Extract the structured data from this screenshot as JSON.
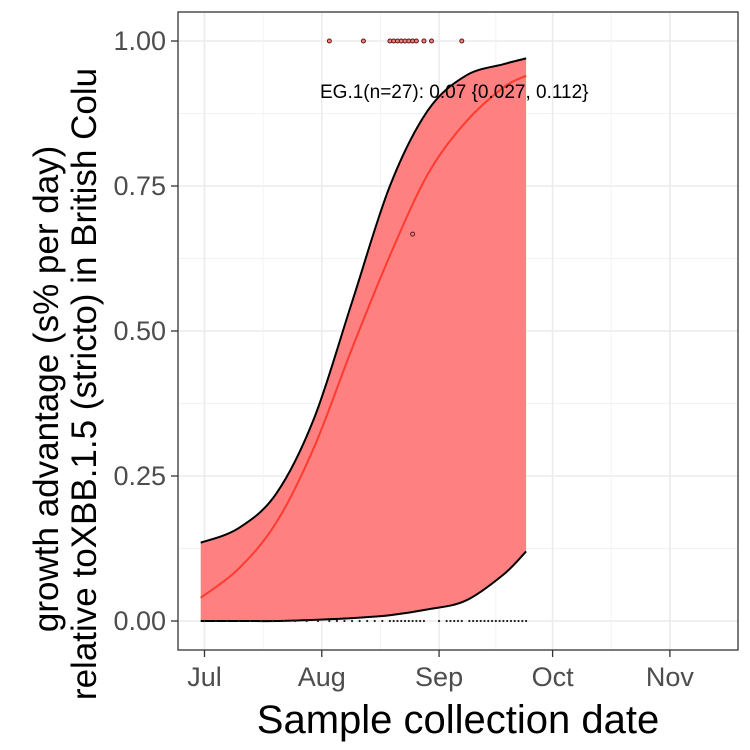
{
  "chart_data": {
    "type": "line",
    "xlabel": "Sample collection date",
    "ylabel": "growth advantage (s% per day)\nrelative toXBB.1.5 (stricto) in British Colu",
    "x_ticks": [
      "Jul",
      "Aug",
      "Sep",
      "Oct",
      "Nov"
    ],
    "x_tick_dates": [
      "2023-07-01",
      "2023-08-01",
      "2023-09-01",
      "2023-10-01",
      "2023-11-01"
    ],
    "xlim": [
      "2023-06-24",
      "2023-11-19"
    ],
    "y_ticks": [
      "0.00",
      "0.25",
      "0.50",
      "0.75",
      "1.00"
    ],
    "y_tick_values": [
      0,
      0.25,
      0.5,
      0.75,
      1.0
    ],
    "ylim": [
      -0.05,
      1.05
    ],
    "grid": true,
    "annotation": "EG.1(n=27): 0.07 {0.027, 0.112}",
    "series": [
      {
        "name": "EG.1",
        "color": "#ff3b30",
        "fill_color": "#ff8080",
        "fit_dates": [
          "2023-06-30",
          "2023-07-10",
          "2023-07-20",
          "2023-07-30",
          "2023-08-09",
          "2023-08-19",
          "2023-08-29",
          "2023-09-08",
          "2023-09-18",
          "2023-09-24"
        ],
        "fit": [
          0.04,
          0.09,
          0.17,
          0.3,
          0.47,
          0.63,
          0.77,
          0.86,
          0.92,
          0.94
        ],
        "lower": [
          0.0,
          0.0,
          0.0,
          0.002,
          0.005,
          0.01,
          0.02,
          0.035,
          0.08,
          0.12
        ],
        "upper": [
          0.135,
          0.16,
          0.22,
          0.35,
          0.55,
          0.75,
          0.88,
          0.94,
          0.96,
          0.97
        ],
        "points": [
          {
            "date": "2023-08-03",
            "value": 1.0
          },
          {
            "date": "2023-08-12",
            "value": 1.0
          },
          {
            "date": "2023-08-19",
            "value": 1.0
          },
          {
            "date": "2023-08-20",
            "value": 1.0
          },
          {
            "date": "2023-08-21",
            "value": 1.0
          },
          {
            "date": "2023-08-22",
            "value": 1.0
          },
          {
            "date": "2023-08-23",
            "value": 1.0
          },
          {
            "date": "2023-08-24",
            "value": 1.0
          },
          {
            "date": "2023-08-25",
            "value": 1.0
          },
          {
            "date": "2023-08-26",
            "value": 1.0
          },
          {
            "date": "2023-08-28",
            "value": 1.0
          },
          {
            "date": "2023-08-30",
            "value": 1.0
          },
          {
            "date": "2023-09-07",
            "value": 1.0
          },
          {
            "date": "2023-08-25",
            "value": 0.667
          }
        ],
        "zero_points": [
          "2023-07-01",
          "2023-07-04",
          "2023-07-07",
          "2023-07-10",
          "2023-07-13",
          "2023-07-16",
          "2023-07-19",
          "2023-07-22",
          "2023-07-25",
          "2023-07-28",
          "2023-07-31",
          "2023-08-03",
          "2023-08-05",
          "2023-08-07",
          "2023-08-09",
          "2023-08-11",
          "2023-08-13",
          "2023-08-15",
          "2023-08-17",
          "2023-08-19",
          "2023-08-20",
          "2023-08-21",
          "2023-08-22",
          "2023-08-23",
          "2023-08-24",
          "2023-08-25",
          "2023-08-26",
          "2023-08-27",
          "2023-08-28",
          "2023-09-01",
          "2023-09-03",
          "2023-09-04",
          "2023-09-05",
          "2023-09-06",
          "2023-09-07",
          "2023-09-09",
          "2023-09-10",
          "2023-09-11",
          "2023-09-12",
          "2023-09-13",
          "2023-09-14",
          "2023-09-15",
          "2023-09-16",
          "2023-09-17",
          "2023-09-18",
          "2023-09-19",
          "2023-09-20",
          "2023-09-21",
          "2023-09-22",
          "2023-09-23",
          "2023-09-24"
        ]
      }
    ]
  }
}
